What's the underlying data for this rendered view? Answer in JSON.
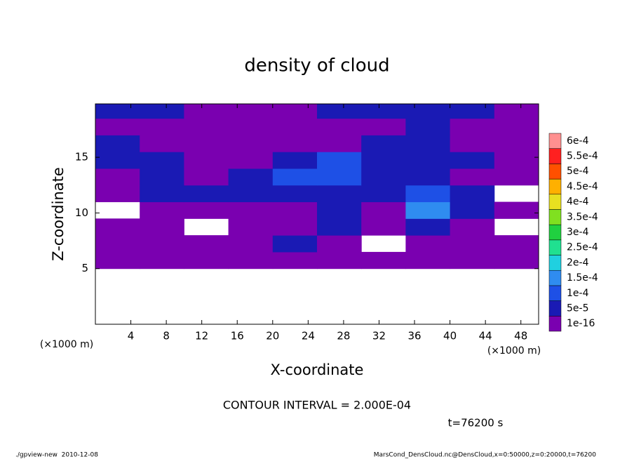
{
  "chart_data": {
    "type": "contour",
    "title": "density of cloud",
    "x_label": "X-coordinate",
    "y_label": "Z-coordinate",
    "x_unit_label": "(×1000 m)",
    "y_unit_label": "(×1000 m)",
    "annotation": "CONTOUR INTERVAL = 2.000E-04",
    "time_label": "t=76200 s",
    "footer_left": "./gpview-new  2010-12-08",
    "footer_right": "MarsCond_DensCloud.nc@DensCloud,x=0:50000,z=0:20000,t=76200",
    "xlim": [
      0,
      50
    ],
    "ylim": [
      0,
      19.8
    ],
    "xticks": [
      4,
      8,
      12,
      16,
      20,
      24,
      28,
      32,
      36,
      40,
      44,
      48
    ],
    "yticks": [
      5,
      10,
      15
    ],
    "x_edges": [
      0,
      5,
      10,
      15,
      20,
      25,
      30,
      35,
      40,
      45,
      50
    ],
    "z_edges": [
      5,
      6.5,
      8,
      9.5,
      11,
      12.5,
      14,
      15.5,
      17,
      18.5,
      19.8
    ],
    "values": [
      [
        1e-16,
        1e-16,
        1e-16,
        1e-16,
        1e-16,
        1e-16,
        1e-16,
        1e-16,
        1e-16,
        1e-16
      ],
      [
        1e-16,
        1e-16,
        1e-16,
        1e-16,
        5e-05,
        1e-16,
        null,
        1e-16,
        1e-16,
        1e-16
      ],
      [
        1e-16,
        1e-16,
        null,
        1e-16,
        1e-16,
        5e-05,
        1e-16,
        5e-05,
        1e-16,
        null
      ],
      [
        null,
        1e-16,
        1e-16,
        1e-16,
        1e-16,
        5e-05,
        1e-16,
        0.00015,
        5e-05,
        1e-16
      ],
      [
        1e-16,
        5e-05,
        5e-05,
        5e-05,
        5e-05,
        5e-05,
        5e-05,
        0.0001,
        5e-05,
        null
      ],
      [
        1e-16,
        5e-05,
        1e-16,
        5e-05,
        0.0001,
        0.0001,
        5e-05,
        5e-05,
        1e-16,
        1e-16
      ],
      [
        5e-05,
        5e-05,
        1e-16,
        1e-16,
        5e-05,
        0.0001,
        5e-05,
        5e-05,
        5e-05,
        1e-16
      ],
      [
        5e-05,
        1e-16,
        1e-16,
        1e-16,
        1e-16,
        1e-16,
        5e-05,
        5e-05,
        1e-16,
        1e-16
      ],
      [
        1e-16,
        1e-16,
        1e-16,
        1e-16,
        1e-16,
        1e-16,
        1e-16,
        5e-05,
        1e-16,
        1e-16
      ],
      [
        5e-05,
        5e-05,
        1e-16,
        1e-16,
        1e-16,
        5e-05,
        5e-05,
        5e-05,
        5e-05,
        1e-16
      ]
    ],
    "colorbar": [
      {
        "value": 1e-16,
        "label": "1e-16",
        "color": "#7a00b0"
      },
      {
        "value": 5e-05,
        "label": "5e-5",
        "color": "#1a1ab4"
      },
      {
        "value": 0.0001,
        "label": "1e-4",
        "color": "#1e50e6"
      },
      {
        "value": 0.00015,
        "label": "1.5e-4",
        "color": "#2f8cf0"
      },
      {
        "value": 0.0002,
        "label": "2e-4",
        "color": "#20d0e0"
      },
      {
        "value": 0.00025,
        "label": "2.5e-4",
        "color": "#20e090"
      },
      {
        "value": 0.0003,
        "label": "3e-4",
        "color": "#20d040"
      },
      {
        "value": 0.00035,
        "label": "3.5e-4",
        "color": "#80e020"
      },
      {
        "value": 0.0004,
        "label": "4e-4",
        "color": "#e8e020"
      },
      {
        "value": 0.00045,
        "label": "4.5e-4",
        "color": "#ffb000"
      },
      {
        "value": 0.0005,
        "label": "5e-4",
        "color": "#ff5000"
      },
      {
        "value": 0.00055,
        "label": "5.5e-4",
        "color": "#ff2020"
      },
      {
        "value": 0.0006,
        "label": "6e-4",
        "color": "#ff9090"
      }
    ]
  }
}
